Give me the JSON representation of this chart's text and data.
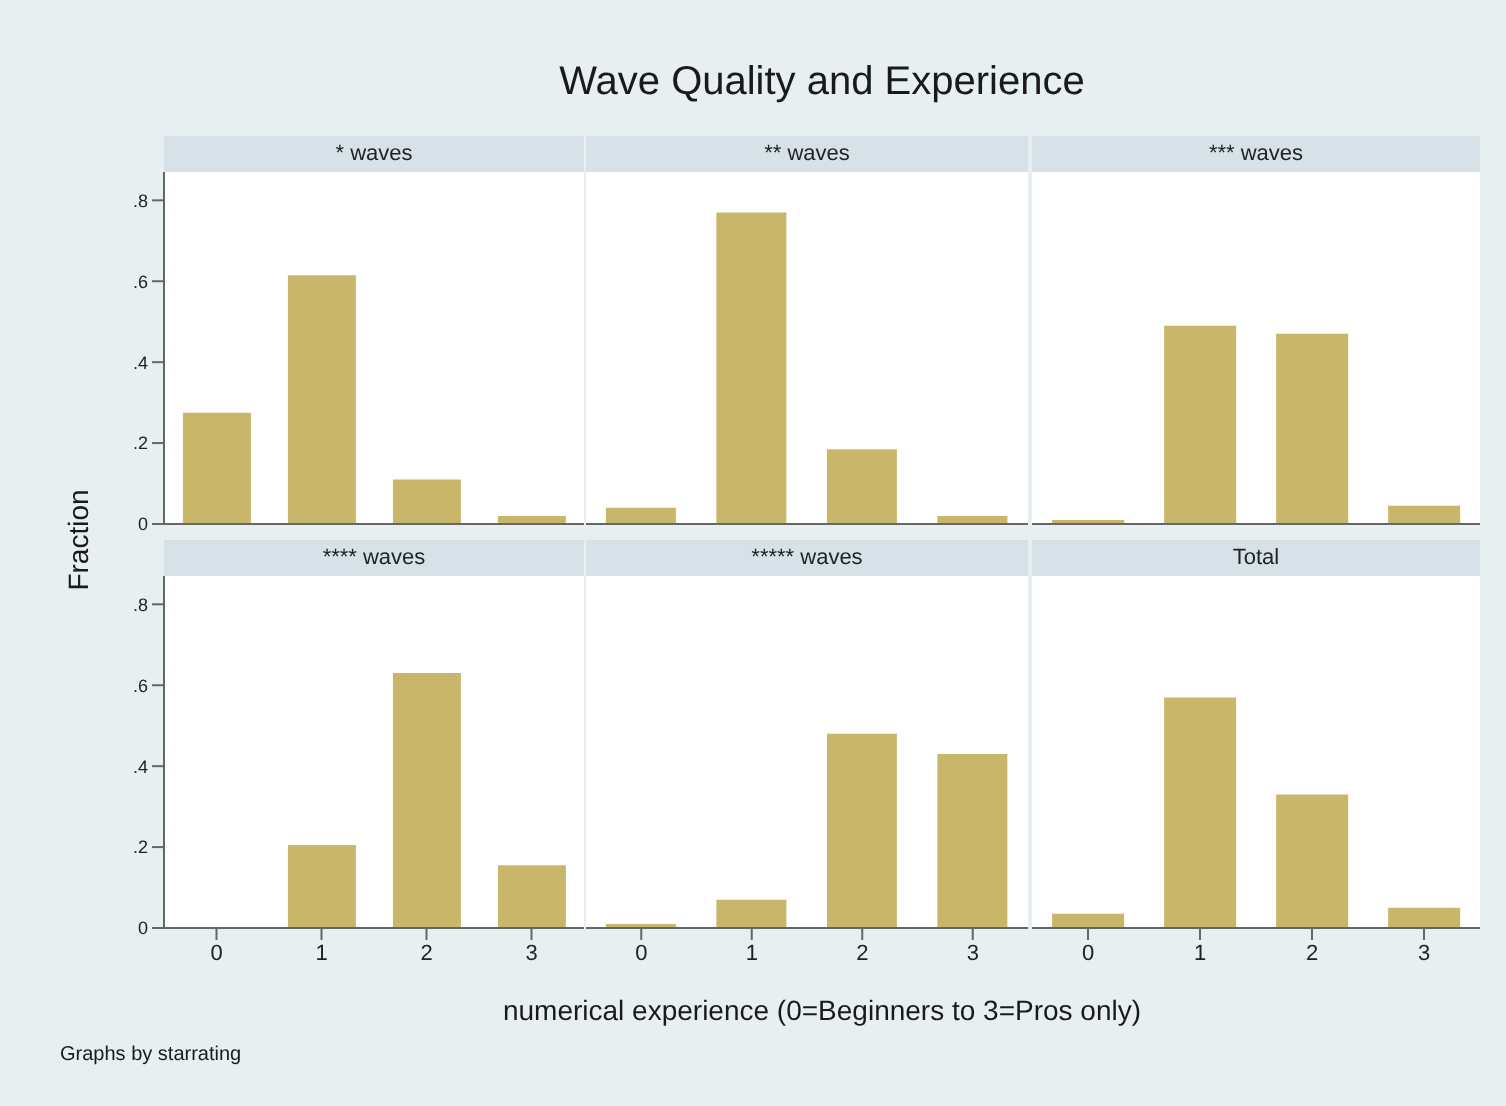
{
  "chart_data": [
    {
      "type": "bar",
      "subtitle": "* waves",
      "ylabel": "Fraction",
      "annotations": [
        "Graphs by starrating"
      ],
      "categories": [
        "0",
        "1",
        "2",
        "3"
      ],
      "values": [
        0.275,
        0.615,
        0.11,
        0.02
      ],
      "color": "#c8b66a",
      "ylim": [
        0,
        0.87
      ],
      "yticks": [
        0,
        {
          "value": 0.2,
          "label": ".2"
        },
        {
          "value": 0.4,
          "label": ".4"
        },
        {
          "value": 0.6,
          "label": ".6"
        },
        {
          "value": 0.8,
          "label": ".8"
        }
      ],
      "tick_labels": "y"
    },
    {
      "type": "bar",
      "title": "Wave Quality and Experience",
      "subtitle": "** waves",
      "categories": [
        "0",
        "1",
        "2",
        "3"
      ],
      "values": [
        0.04,
        0.77,
        0.185,
        0.02
      ],
      "color": "#c8b66a",
      "ylim": [
        0,
        0.87
      ],
      "tick_labels": false
    },
    {
      "type": "bar",
      "subtitle": "*** waves",
      "categories": [
        "0",
        "1",
        "2",
        "3"
      ],
      "values": [
        0.01,
        0.49,
        0.47,
        0.045
      ],
      "color": "#c8b66a",
      "ylim": [
        0,
        0.87
      ],
      "tick_labels": false
    },
    {
      "type": "bar",
      "subtitle": "**** waves",
      "categories": [
        "0",
        "1",
        "2",
        "3"
      ],
      "values": [
        0,
        0.205,
        0.63,
        0.155
      ],
      "color": "#c8b66a",
      "ylim": [
        0,
        0.87
      ],
      "yticks": [
        0,
        {
          "value": 0.2,
          "label": ".2"
        },
        {
          "value": 0.4,
          "label": ".4"
        },
        {
          "value": 0.6,
          "label": ".6"
        },
        {
          "value": 0.8,
          "label": ".8"
        }
      ]
    },
    {
      "type": "bar",
      "subtitle": "***** waves",
      "xlabel": "numerical experience (0=Beginners to 3=Pros only)",
      "categories": [
        "0",
        "1",
        "2",
        "3"
      ],
      "values": [
        0.01,
        0.07,
        0.48,
        0.43
      ],
      "color": "#c8b66a",
      "ylim": [
        0,
        0.87
      ],
      "tick_labels": "x"
    },
    {
      "type": "bar",
      "subtitle": "Total",
      "categories": [
        "0",
        "1",
        "2",
        "3"
      ],
      "values": [
        0.035,
        0.57,
        0.33,
        0.05
      ],
      "color": "#c8b66a",
      "ylim": [
        0,
        0.87
      ],
      "tick_labels": "x"
    }
  ]
}
